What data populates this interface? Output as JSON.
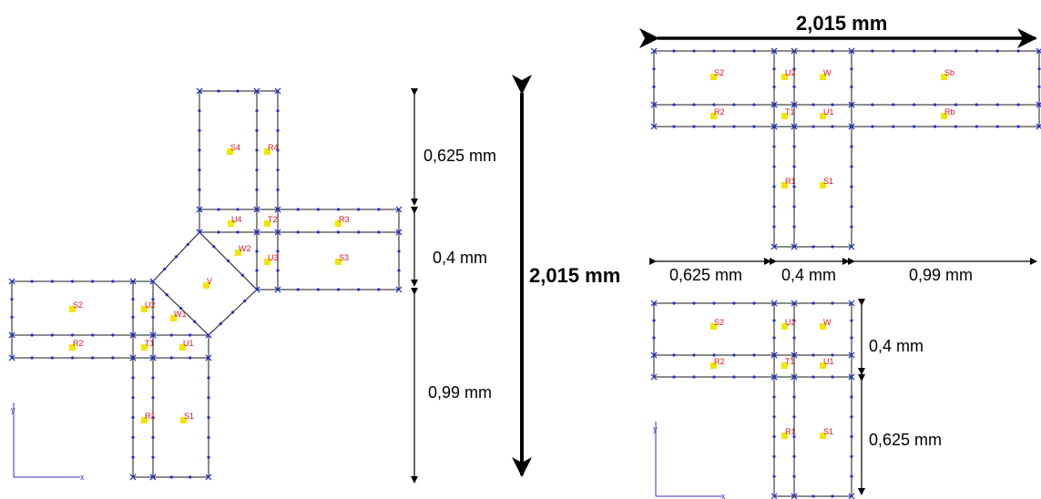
{
  "dimensions": {
    "cross_top": "0,625 mm",
    "cross_mid": "0,4 mm",
    "cross_bottom": "0,99 mm",
    "total_vertical": "2,015 mm",
    "t_total_horizontal": "2,015 mm",
    "t_left": "0,625 mm",
    "t_mid": "0,4 mm",
    "t_right": "0,99 mm",
    "t2_top": "0,4 mm",
    "t2_bottom": "0,625 mm"
  },
  "labels": {
    "cross": {
      "S4": "S4",
      "R4": "R4",
      "U4": "U4",
      "T2": "T2",
      "R3": "R3",
      "W2": "W2",
      "U3": "U3",
      "S3": "S3",
      "V": "V",
      "W1": "W1",
      "S2": "S2",
      "U2": "U2",
      "R2": "R2",
      "T1": "T1",
      "U1": "U1",
      "R1": "R1",
      "S1": "S1"
    },
    "t1": {
      "S2": "S2",
      "U2": "U2",
      "W": "W",
      "Sb": "Sb",
      "R2": "R2",
      "T1": "T1",
      "U1": "U1",
      "Rb": "Rb",
      "R1": "R1",
      "S1": "S1"
    },
    "t2": {
      "S2": "S2",
      "U2": "U2",
      "W": "W",
      "R2": "R2",
      "T1": "T1",
      "U1": "U1",
      "R1": "R1",
      "S1": "S1"
    }
  },
  "axes": {
    "y": "y",
    "x": "x"
  },
  "colors": {
    "mesh_nodes": "#1f2fd0",
    "label_text": "#e0141e",
    "marker": "#f2e600"
  }
}
